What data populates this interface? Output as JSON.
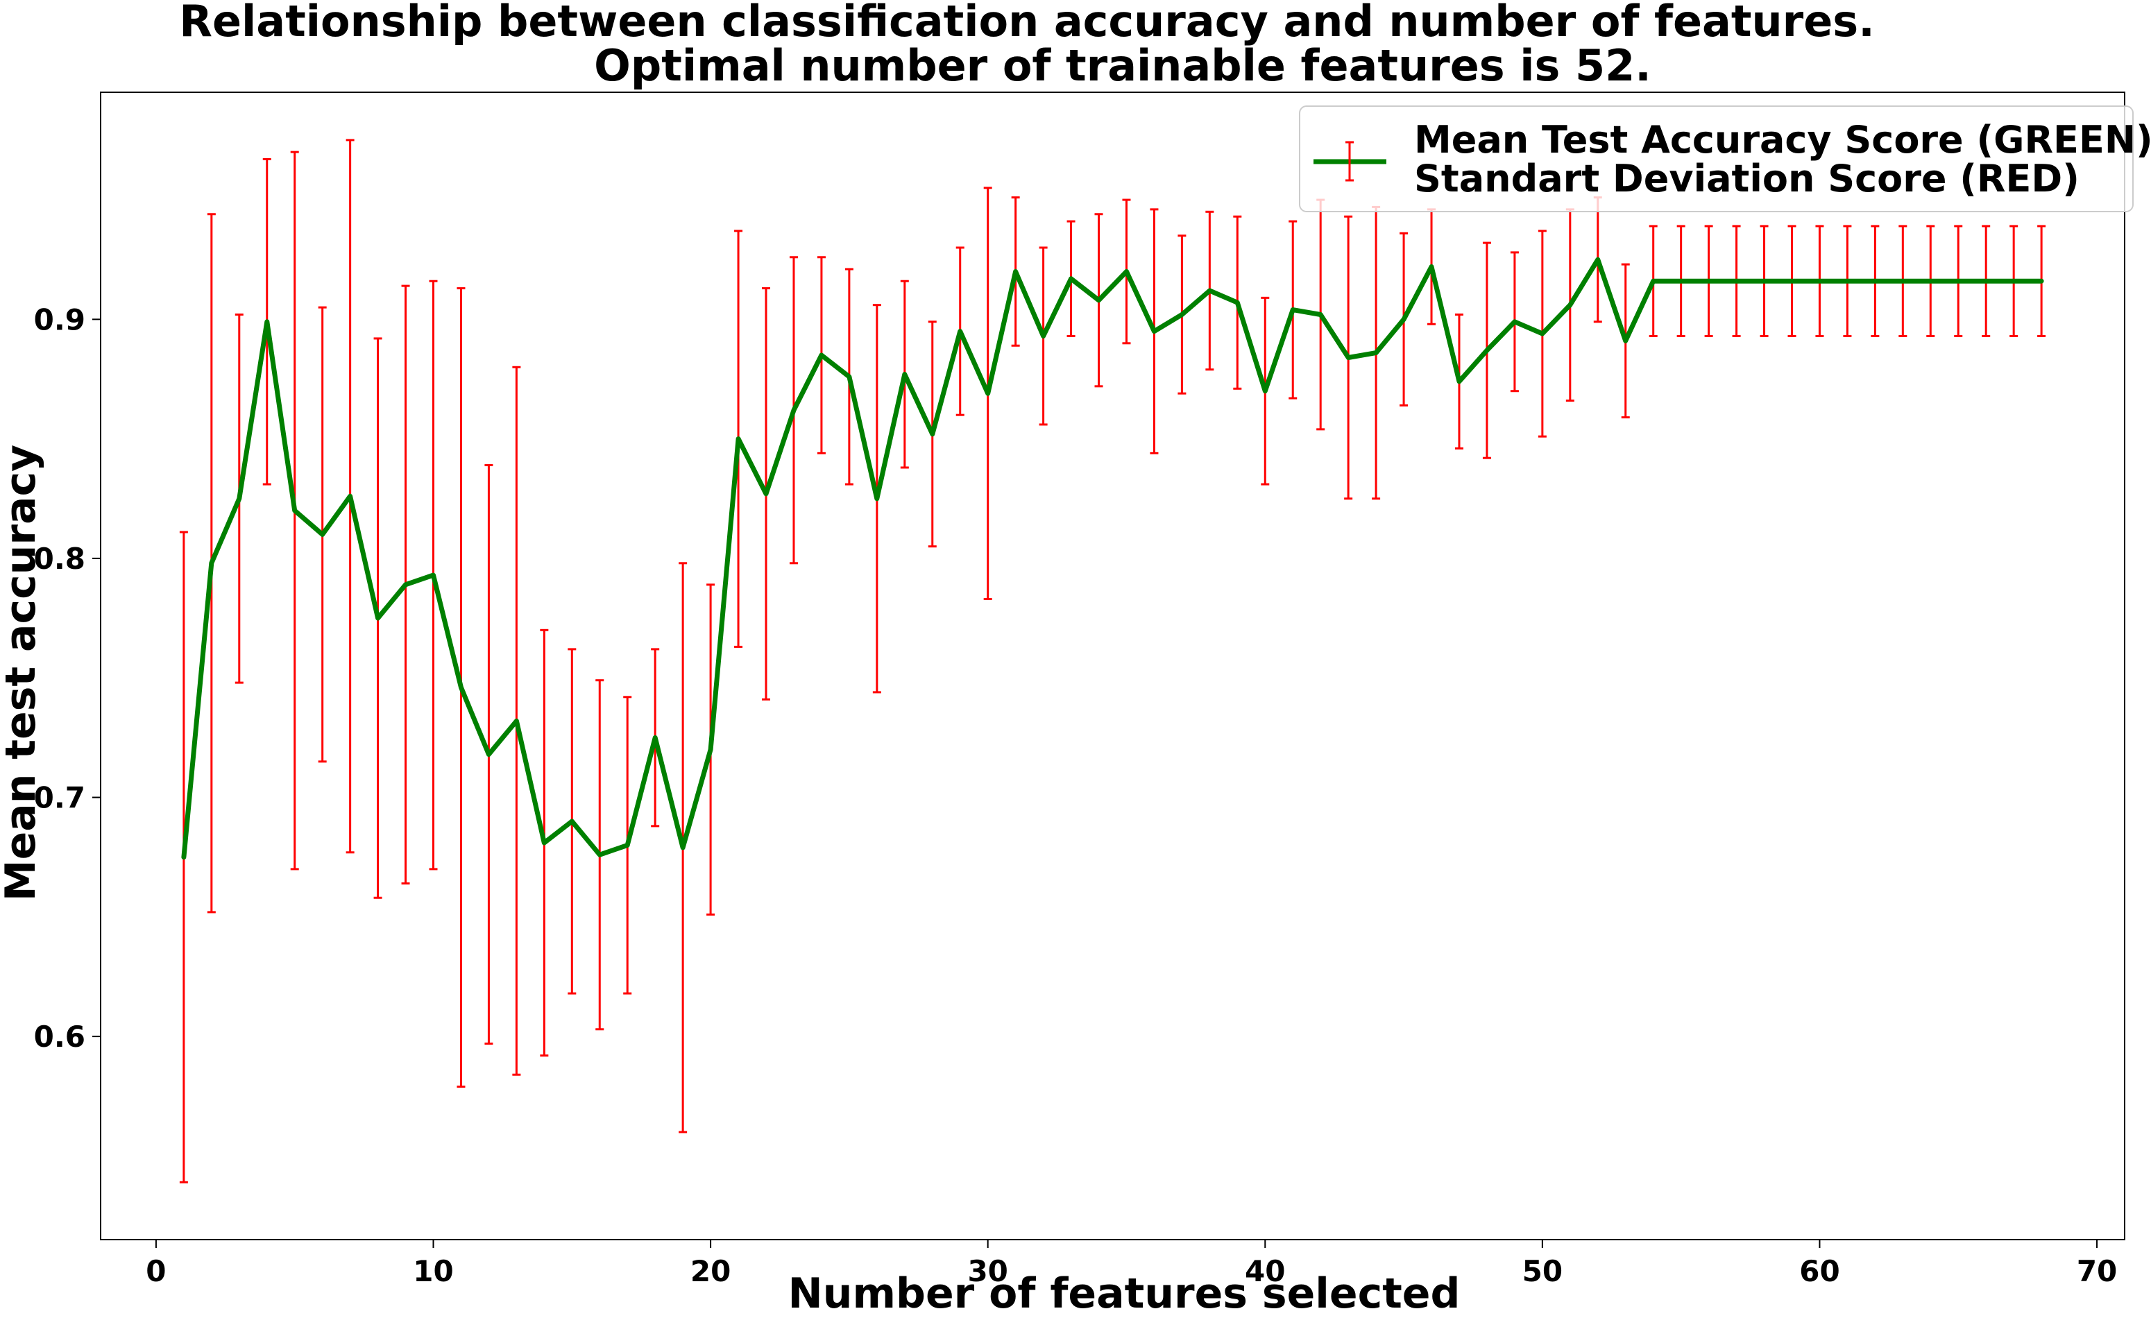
{
  "chart_data": {
    "type": "line",
    "title_lines": [
      "Relationship between classification accuracy and number of features.",
      "Optimal number of trainable features is 52."
    ],
    "xlabel": "Number of features selected",
    "ylabel": "Mean test accuracy",
    "xlim": [
      -2,
      71
    ],
    "ylim": [
      0.515,
      0.995
    ],
    "xticks": [
      0,
      10,
      20,
      30,
      40,
      50,
      60,
      70
    ],
    "yticks": [
      0.6,
      0.7,
      0.8,
      0.9
    ],
    "legend": {
      "placement": "top-right",
      "lines": [
        "Mean Test Accuracy Score (GREEN)",
        "Standart Deviation Score (RED)"
      ]
    },
    "colors": {
      "line": "#008000",
      "errorbar": "#ff0000"
    },
    "x": [
      1,
      2,
      3,
      4,
      5,
      6,
      7,
      8,
      9,
      10,
      11,
      12,
      13,
      14,
      15,
      16,
      17,
      18,
      19,
      20,
      21,
      22,
      23,
      24,
      25,
      26,
      27,
      28,
      29,
      30,
      31,
      32,
      33,
      34,
      35,
      36,
      37,
      38,
      39,
      40,
      41,
      42,
      43,
      44,
      45,
      46,
      47,
      48,
      49,
      50,
      51,
      52,
      53,
      54,
      55,
      56,
      57,
      58,
      59,
      60,
      61,
      62,
      63,
      64,
      65,
      66,
      67,
      68
    ],
    "series": [
      {
        "mean": [
          0.675,
          0.798,
          0.825,
          0.899,
          0.82,
          0.81,
          0.826,
          0.775,
          0.789,
          0.793,
          0.746,
          0.718,
          0.732,
          0.681,
          0.69,
          0.676,
          0.68,
          0.725,
          0.679,
          0.72,
          0.85,
          0.827,
          0.862,
          0.885,
          0.876,
          0.825,
          0.877,
          0.852,
          0.895,
          0.869,
          0.92,
          0.893,
          0.917,
          0.908,
          0.92,
          0.895,
          0.902,
          0.912,
          0.907,
          0.87,
          0.904,
          0.902,
          0.884,
          0.886,
          0.9,
          0.922,
          0.874,
          0.887,
          0.899,
          0.894,
          0.906,
          0.925,
          0.891,
          0.916,
          0.916,
          0.916,
          0.916,
          0.916,
          0.916,
          0.916,
          0.916,
          0.916,
          0.916,
          0.916,
          0.916,
          0.916,
          0.916,
          0.916
        ],
        "std": [
          0.136,
          0.146,
          0.077,
          0.068,
          0.15,
          0.095,
          0.149,
          0.117,
          0.125,
          0.123,
          0.167,
          0.121,
          0.148,
          0.089,
          0.072,
          0.073,
          0.062,
          0.037,
          0.119,
          0.069,
          0.087,
          0.086,
          0.064,
          0.041,
          0.045,
          0.081,
          0.039,
          0.047,
          0.035,
          0.086,
          0.031,
          0.037,
          0.024,
          0.036,
          0.03,
          0.051,
          0.033,
          0.033,
          0.036,
          0.039,
          0.037,
          0.048,
          0.059,
          0.061,
          0.036,
          0.024,
          0.028,
          0.045,
          0.029,
          0.043,
          0.04,
          0.026,
          0.032,
          0.023,
          0.023,
          0.023,
          0.023,
          0.023,
          0.023,
          0.023,
          0.023,
          0.023,
          0.023,
          0.023,
          0.023,
          0.023,
          0.023,
          0.023
        ]
      }
    ]
  }
}
